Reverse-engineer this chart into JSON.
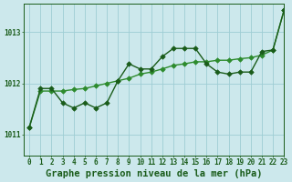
{
  "title": "Graphe pression niveau de la mer (hPa)",
  "background_color": "#cce8ec",
  "grid_color": "#9ecdd4",
  "line_color_jagged": "#1a5c1a",
  "line_color_trend": "#2d8b2d",
  "xlim": [
    -0.5,
    23
  ],
  "ylim": [
    1010.6,
    1013.55
  ],
  "yticks": [
    1011,
    1012,
    1013
  ],
  "xticks": [
    0,
    1,
    2,
    3,
    4,
    5,
    6,
    7,
    8,
    9,
    10,
    11,
    12,
    13,
    14,
    15,
    16,
    17,
    18,
    19,
    20,
    21,
    22,
    23
  ],
  "jagged_x": [
    0,
    1,
    2,
    3,
    4,
    5,
    6,
    7,
    8,
    9,
    10,
    11,
    12,
    13,
    14,
    15,
    16,
    17,
    18,
    19,
    20,
    21,
    22,
    23
  ],
  "jagged_y": [
    1011.15,
    1011.9,
    1011.9,
    1011.62,
    1011.52,
    1011.62,
    1011.52,
    1011.62,
    1012.05,
    1012.38,
    1012.28,
    1012.28,
    1012.52,
    1012.68,
    1012.68,
    1012.68,
    1012.38,
    1012.22,
    1012.18,
    1012.22,
    1012.22,
    1012.62,
    1012.65,
    1013.42
  ],
  "trend_x": [
    0,
    1,
    2,
    3,
    4,
    5,
    6,
    7,
    8,
    9,
    10,
    11,
    12,
    13,
    14,
    15,
    16,
    17,
    18,
    19,
    20,
    21,
    22,
    23
  ],
  "trend_y": [
    1011.15,
    1011.85,
    1011.85,
    1011.85,
    1011.88,
    1011.9,
    1011.95,
    1012.0,
    1012.05,
    1012.1,
    1012.18,
    1012.22,
    1012.28,
    1012.35,
    1012.38,
    1012.42,
    1012.42,
    1012.45,
    1012.45,
    1012.48,
    1012.5,
    1012.55,
    1012.65,
    1013.42
  ],
  "marker": "D",
  "markersize": 2.8,
  "linewidth_jagged": 1.0,
  "linewidth_trend": 1.0,
  "title_fontsize": 7.5,
  "tick_fontsize": 5.5,
  "ylabel_fontsize": 6.5
}
